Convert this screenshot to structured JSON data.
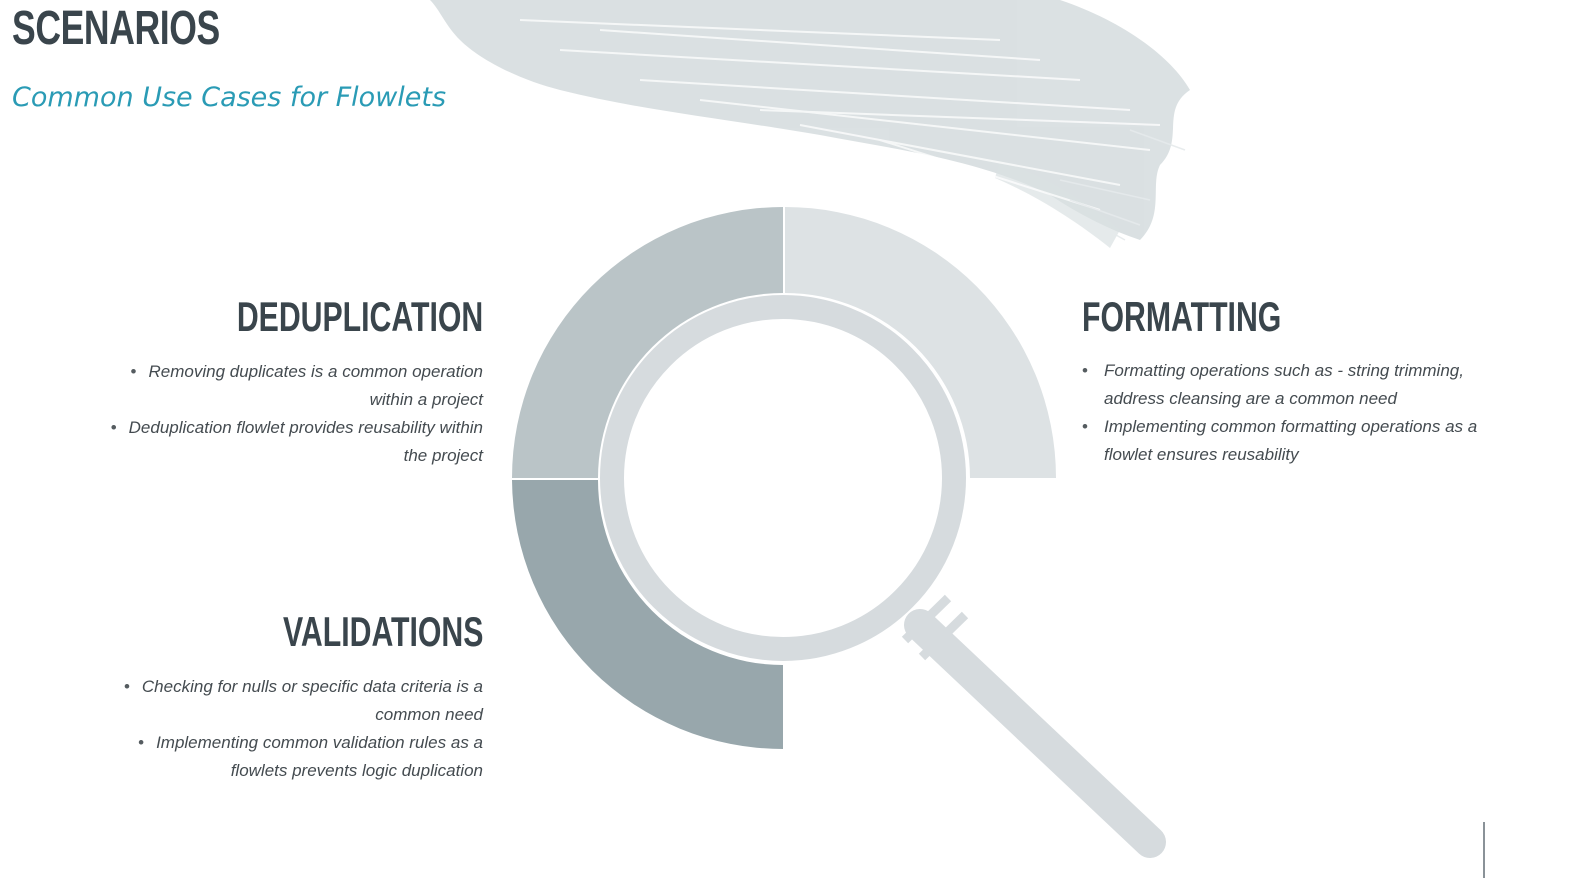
{
  "header": {
    "title": "SCENARIOS",
    "subtitle": "Common Use Cases for Flowlets"
  },
  "sections": {
    "deduplication": {
      "heading": "DEDUPLICATION",
      "bullets": [
        [
          "Removing duplicates is a common operation",
          "within a project"
        ],
        [
          "Deduplication flowlet provides reusability within",
          "the project"
        ]
      ]
    },
    "validations": {
      "heading": "VALIDATIONS",
      "bullets": [
        [
          "Checking for nulls or specific data criteria is a",
          "common need"
        ],
        [
          "Implementing common validation rules as a",
          "flowlets prevents logic duplication"
        ]
      ]
    },
    "formatting": {
      "heading": "FORMATTING",
      "bullets": [
        [
          "Formatting operations such as - string trimming,",
          "address cleansing are a common need"
        ],
        [
          "Implementing common formatting operations as a",
          "flowlet ensures reusability"
        ]
      ]
    }
  },
  "colors": {
    "title": "#3a454c",
    "subtitle": "#2a9bb5",
    "segment_formatting": "#dde2e4",
    "segment_deduplication": "#bac4c7",
    "segment_validations": "#98a7ac",
    "magnifier": "#d6dbde",
    "brush": "#d4dadd"
  },
  "icons": {
    "diagram": "magnifying-glass-icon",
    "background": "brush-stroke-decoration"
  }
}
